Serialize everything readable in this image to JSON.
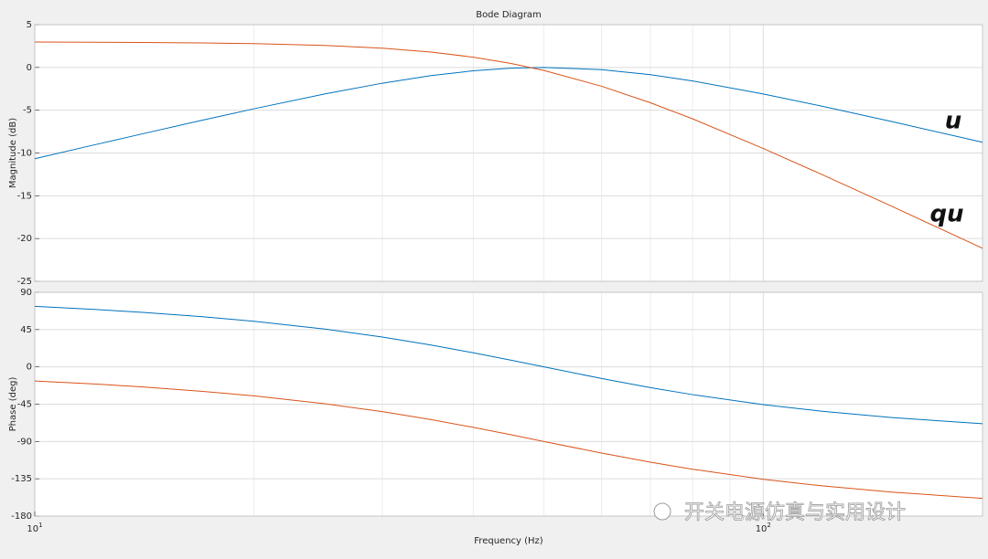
{
  "chart_data": [
    {
      "type": "line",
      "title": "Bode Diagram",
      "ylabel": "Magnitude (dB)",
      "x": [
        10,
        12,
        14,
        17,
        20,
        25,
        30,
        35,
        40,
        45,
        50,
        60,
        70,
        80,
        100,
        120,
        150,
        200
      ],
      "xlim": [
        10,
        200
      ],
      "xscale": "log",
      "ylim": [
        -25,
        5
      ],
      "yticks": [
        -25,
        -20,
        -15,
        -10,
        -5,
        0,
        5
      ],
      "grid": true,
      "series": [
        {
          "name": "u",
          "color": "#0072bd",
          "values": [
            -10.67,
            -9.1,
            -7.79,
            -6.16,
            -4.83,
            -3.1,
            -1.84,
            -0.95,
            -0.39,
            -0.09,
            0,
            -0.26,
            -0.85,
            -1.58,
            -3.1,
            -4.5,
            -6.32,
            -8.75
          ]
        },
        {
          "name": "qu",
          "color": "#d95319",
          "values": [
            2.97,
            2.95,
            2.92,
            2.86,
            2.78,
            2.57,
            2.25,
            1.8,
            1.2,
            0.48,
            -0.35,
            -2.2,
            -4.13,
            -6.01,
            -9.47,
            -12.46,
            -16.21,
            -21.14
          ]
        }
      ]
    },
    {
      "type": "line",
      "ylabel": "Phase (deg)",
      "xlabel": "Frequency  (Hz)",
      "x": [
        10,
        12,
        14,
        17,
        20,
        25,
        30,
        35,
        40,
        45,
        50,
        60,
        70,
        80,
        100,
        120,
        150,
        200
      ],
      "xlim": [
        10,
        200
      ],
      "xscale": "log",
      "xticks": [
        {
          "value": 10,
          "label": "10",
          "exponent": "1"
        },
        {
          "value": 100,
          "label": "10",
          "exponent": "2"
        }
      ],
      "xminor": [
        20,
        30,
        40,
        50,
        60,
        70,
        80,
        90
      ],
      "ylim": [
        -180,
        90
      ],
      "yticks": [
        -180,
        -135,
        -90,
        -45,
        0,
        45,
        90
      ],
      "grid": true,
      "series": [
        {
          "name": "u",
          "color": "#0072bd",
          "values": [
            73.0,
            69.5,
            65.9,
            60.5,
            55.0,
            45.6,
            36.0,
            26.3,
            17.0,
            8.2,
            0,
            -14.0,
            -25.0,
            -33.5,
            -45.6,
            -53.4,
            -61.1,
            -68.6
          ]
        },
        {
          "name": "qu",
          "color": "#d95319",
          "values": [
            -17.0,
            -20.5,
            -24.1,
            -29.5,
            -35.0,
            -44.4,
            -54.0,
            -63.6,
            -73.0,
            -81.8,
            -90,
            -104.0,
            -115.0,
            -123.5,
            -135.6,
            -143.4,
            -151.1,
            -158.6
          ]
        }
      ]
    }
  ],
  "watermark": "开关电源仿真与实用设计"
}
